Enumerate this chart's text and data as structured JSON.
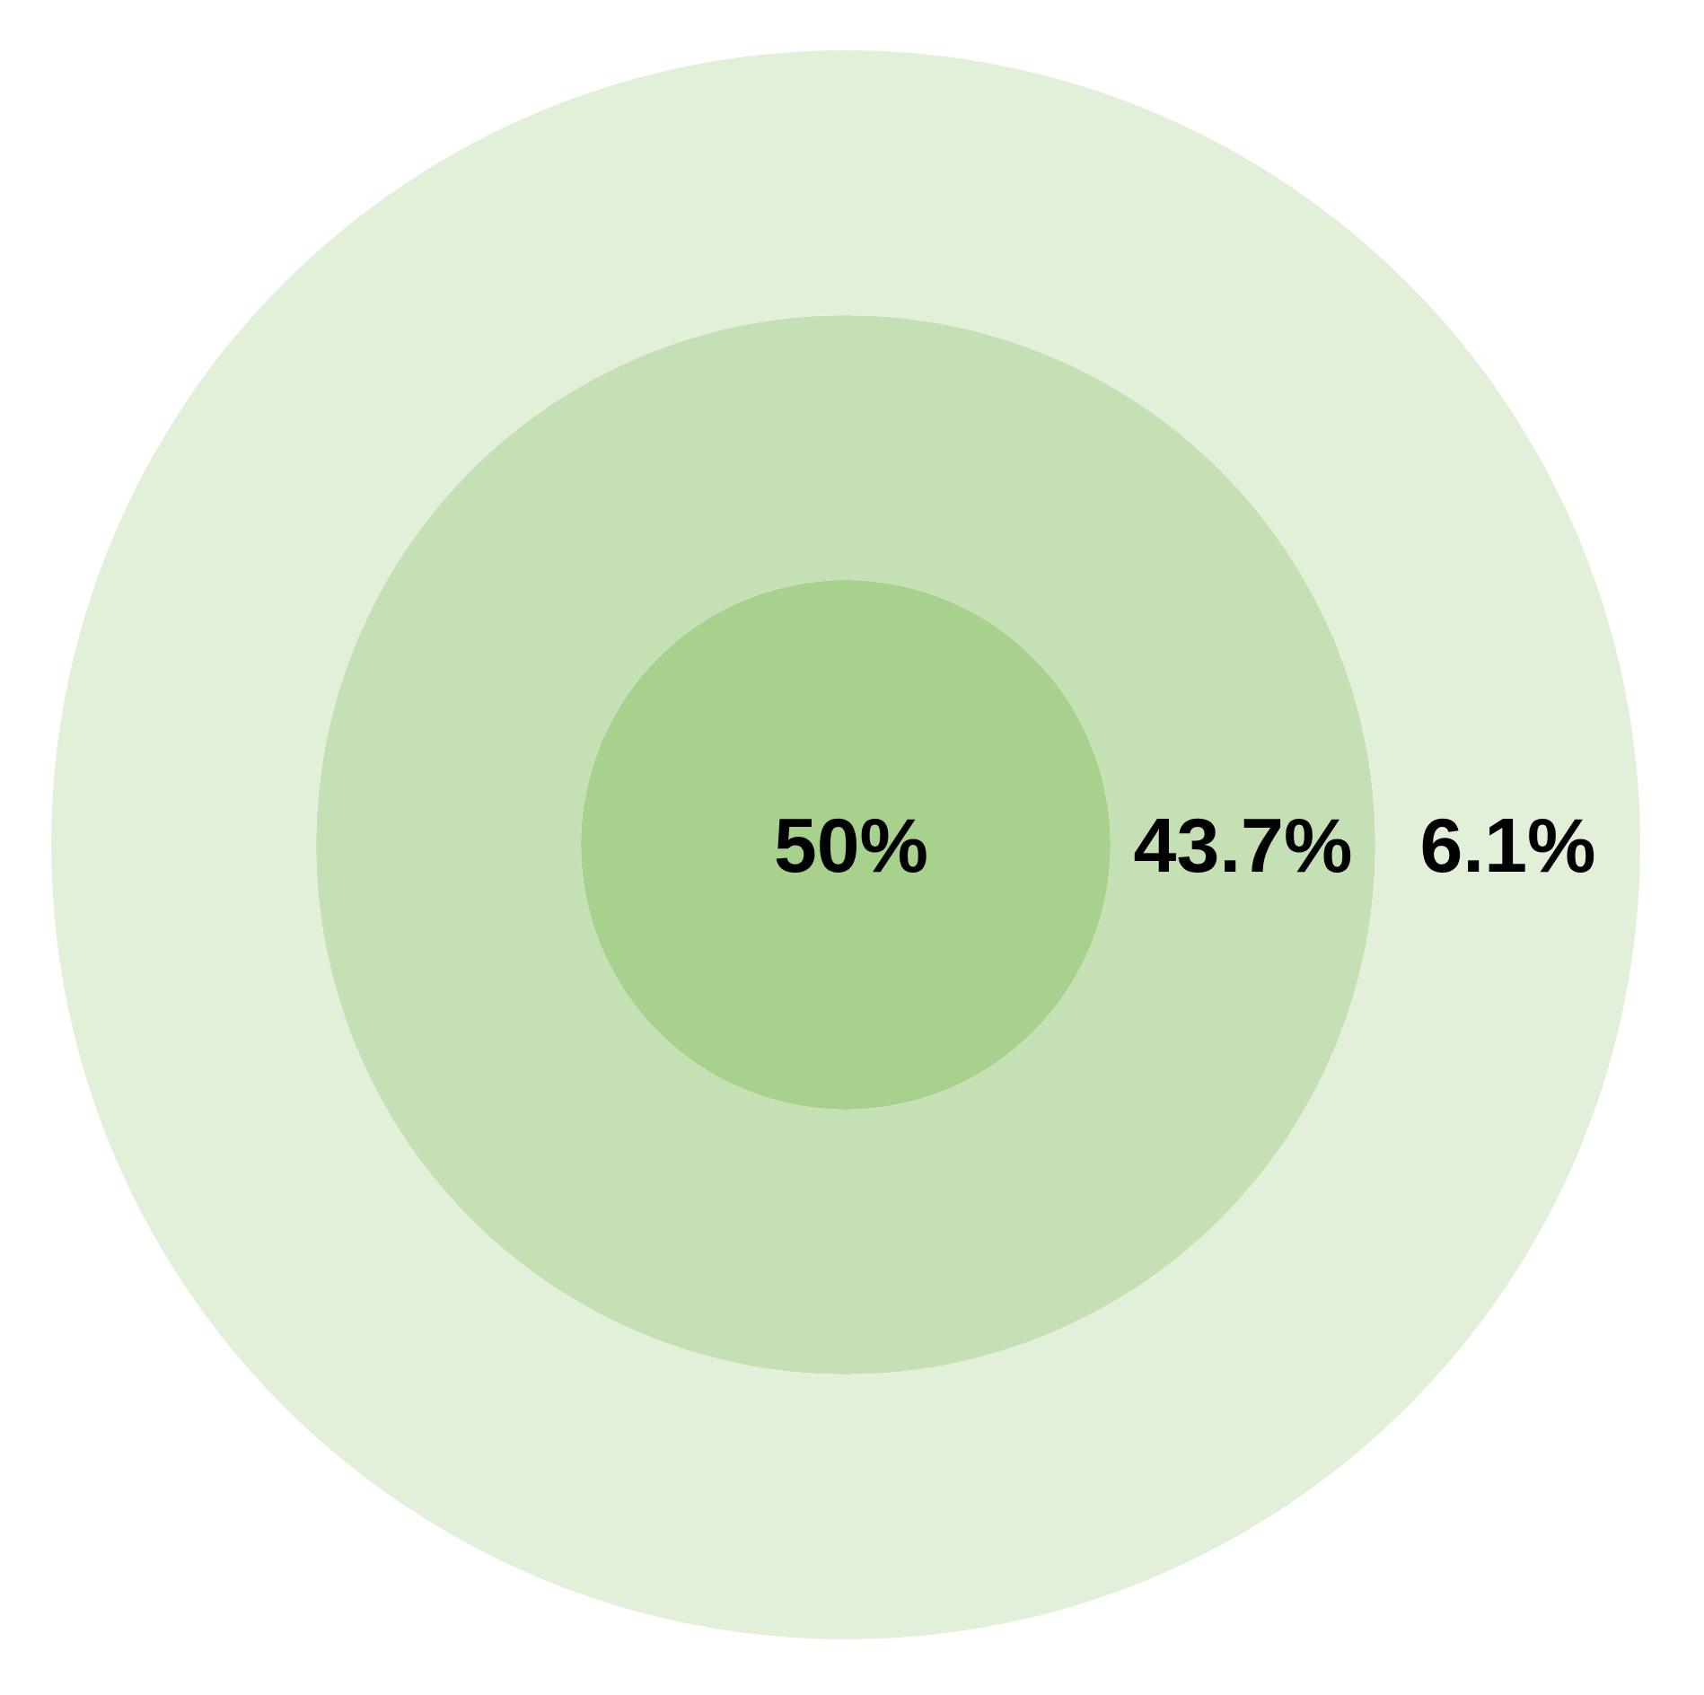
{
  "chart_data": {
    "type": "other",
    "categories": [
      null,
      null,
      null
    ],
    "values": [
      50,
      43.7,
      6.1
    ],
    "value_labels": [
      "50%",
      "43.7%",
      "6.1%"
    ],
    "colors": [
      "#a9d18e",
      "#c5e0b4",
      "#e2f0d9"
    ]
  }
}
